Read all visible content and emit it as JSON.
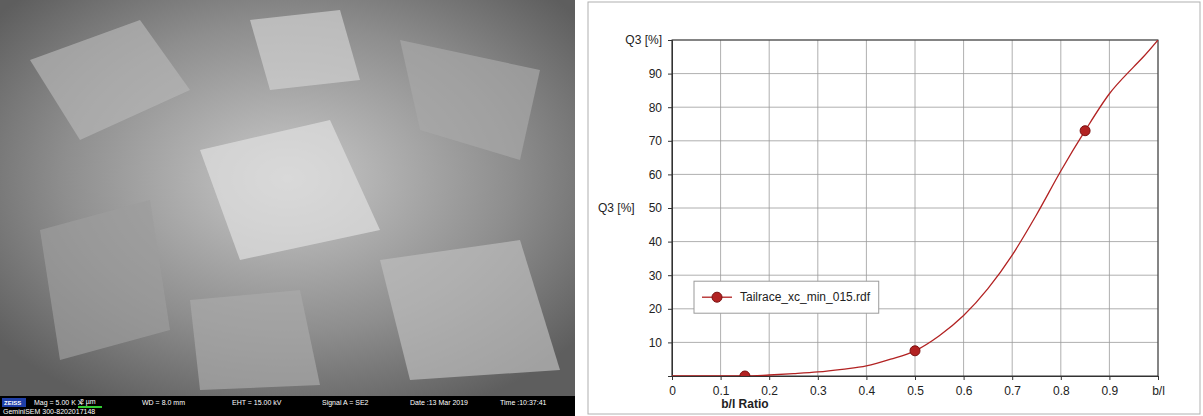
{
  "chart_data": {
    "type": "line",
    "x_label": "b/l Ratio",
    "y_label": "Q3 [%]",
    "xlim": [
      0,
      1
    ],
    "ylim": [
      0,
      100
    ],
    "xticks": [
      0,
      0.1,
      0.2,
      0.3,
      0.4,
      0.5,
      0.6,
      0.7,
      0.8,
      0.9,
      {
        "value": 1,
        "label": "b/l"
      }
    ],
    "yticks": [
      10,
      20,
      30,
      40,
      50,
      60,
      70,
      80,
      90,
      {
        "value": 100,
        "label": "Q3 [%]"
      }
    ],
    "grid": true,
    "legend": "left",
    "series": [
      {
        "name": "Tailrace_xc_min_015.rdf",
        "color": "#b22222",
        "marker": "circle",
        "x": [
          0,
          0.15,
          0.2,
          0.25,
          0.3,
          0.35,
          0.4,
          0.45,
          0.5,
          0.55,
          0.6,
          0.65,
          0.7,
          0.75,
          0.8,
          0.85,
          0.9,
          0.95,
          0.97,
          1
        ],
        "values": [
          0,
          0,
          0.3,
          0.7,
          1.2,
          2,
          3,
          5,
          7.5,
          12,
          18,
          26,
          36,
          48,
          61,
          73,
          84,
          92,
          95,
          100
        ],
        "marker_points": {
          "x": [
            0.15,
            0.5,
            0.85
          ],
          "values": [
            0,
            7.5,
            73
          ]
        }
      }
    ]
  },
  "sem_image": {
    "logo": "ZEISS",
    "magnification": "Mag =  5.00 K X",
    "scale_bar": "2 µm",
    "working_distance": "WD =  8.0 mm",
    "eht": "EHT = 15.00 kV",
    "signal": "Signal A = SE2",
    "date": "Date :13 Mar 2019",
    "time": "Time :10:37:41",
    "instrument": "GeminiSEM 300-8202017148"
  }
}
